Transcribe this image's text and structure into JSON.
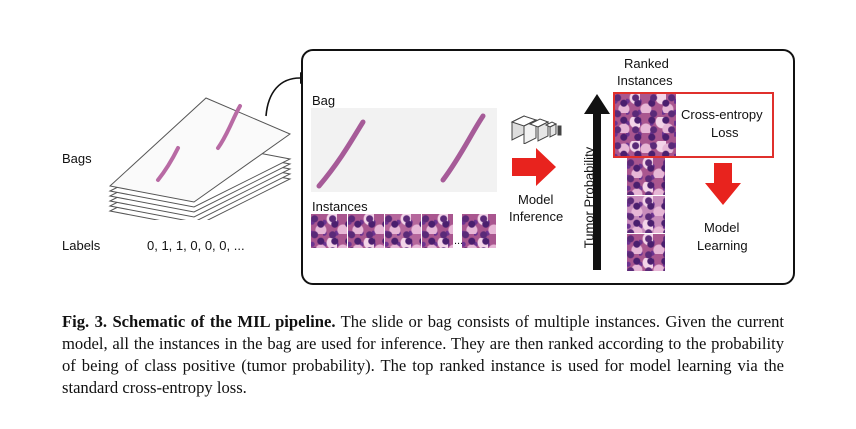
{
  "figure": {
    "bags_label": "Bags",
    "labels_label": "Labels",
    "labels_values": "0, 1, 1, 0, 0, 0, ...",
    "bag_label": "Bag",
    "instances_label": "Instances",
    "instances_ellipsis": "...",
    "model_inference_line1": "Model",
    "model_inference_line2": "Inference",
    "tumor_probability": "Tumor Probability",
    "ranked_instances_line1": "Ranked",
    "ranked_instances_line2": "Instances",
    "cross_entropy_line1": "Cross-entropy",
    "cross_entropy_line2": "Loss",
    "model_learning_line1": "Model",
    "model_learning_line2": "Learning"
  },
  "caption": {
    "label": "Fig. 3.",
    "title": "Schematic of the MIL pipeline.",
    "text": "The slide or bag consists of multiple instances. Given the current model, all the instances in the bag are used for inference. They are then ranked according to the probability of being of class positive (tumor probability). The top ranked instance is used for model learning via the standard cross-entropy loss."
  },
  "colors": {
    "arrow_red": "#e8231e",
    "box_red": "#e0302c",
    "tissue": "#a9568f"
  }
}
